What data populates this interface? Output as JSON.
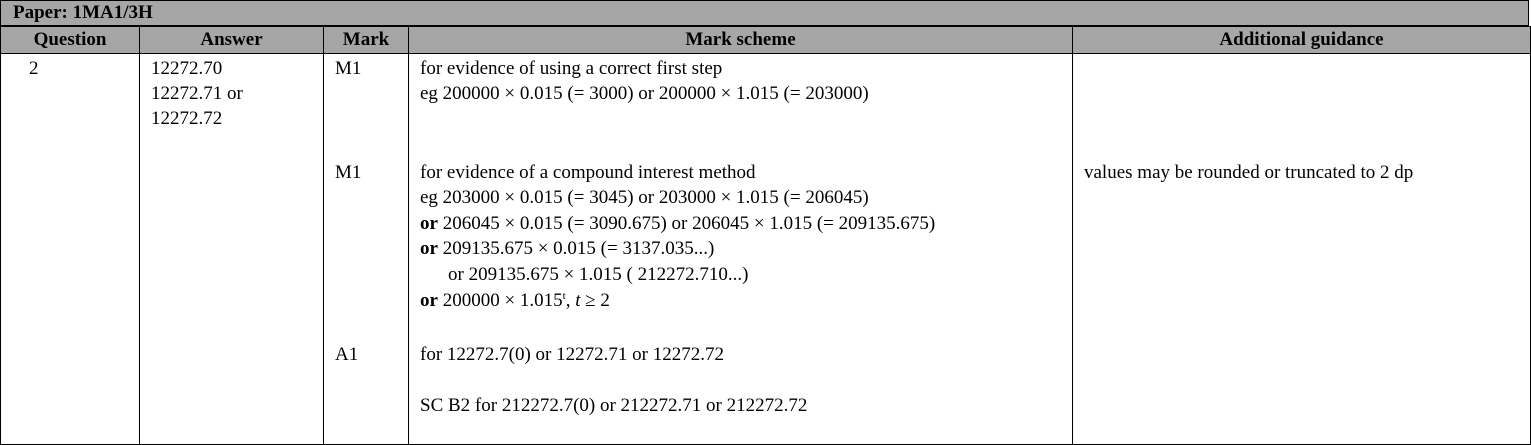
{
  "paper": {
    "label": "Paper: 1MA1/3H"
  },
  "headers": {
    "question": "Question",
    "answer": "Answer",
    "mark": "Mark",
    "scheme": "Mark scheme",
    "guidance": "Additional guidance"
  },
  "row": {
    "question": "2",
    "answer": [
      "12272.70",
      "12272.71 or",
      "12272.72"
    ],
    "marks": [
      "M1",
      "M1",
      "A1"
    ],
    "scheme": {
      "m1a": {
        "line1": "for evidence of using a correct first step",
        "line2": "eg 200000 × 0.015 (= 3000) or 200000 × 1.015 (= 203000)"
      },
      "m1b": {
        "line1": "for evidence of a compound interest method",
        "line2": "eg 203000 × 0.015 (= 3045) or 203000 × 1.015 (=  206045)",
        "or_word": "or",
        "line3": " 206045 × 0.015 (= 3090.675) or 206045 × 1.015 (=  209135.675)",
        "line4": " 209135.675 × 0.015 (= 3137.035...)",
        "line5": "or 209135.675 × 1.015 ( 212272.710...)",
        "line6_pre": " 200000 × 1.015",
        "line6_sup": "t",
        "line6_mid": ", ",
        "line6_var": "t",
        "line6_post": " ≥ 2"
      },
      "a1": {
        "line1": "for 12272.7(0) or 12272.71 or 12272.72",
        "line2": "SC B2 for 212272.7(0) or 212272.71 or 212272.72"
      }
    },
    "guidance": {
      "m1b": "values may be rounded or truncated to 2 dp"
    }
  }
}
